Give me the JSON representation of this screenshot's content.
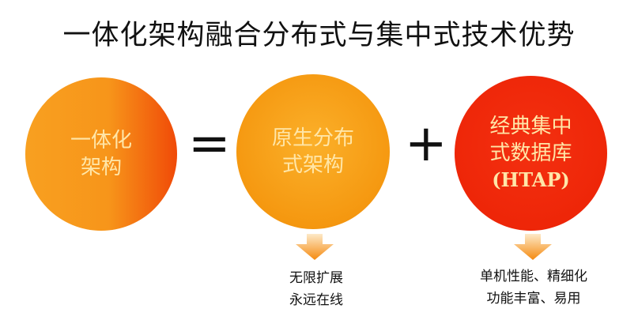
{
  "title": "一体化架构融合分布式与集中式技术优势",
  "circles": [
    {
      "lines": [
        "一体化",
        "架构"
      ]
    },
    {
      "lines": [
        "原生分布",
        "式架构"
      ]
    },
    {
      "lines": [
        "经典集中",
        "式数据库",
        "(HTAP)"
      ]
    }
  ],
  "operators": {
    "equals": "=",
    "plus": "+"
  },
  "benefits": [
    {
      "lines": [
        "无限扩展",
        "永远在线"
      ]
    },
    {
      "lines": [
        "单机性能、精细化",
        "功能丰富、易用"
      ]
    }
  ],
  "colors": {
    "orange": "#f59810",
    "red": "#ee2608",
    "text_light": "#ffe6a8"
  }
}
